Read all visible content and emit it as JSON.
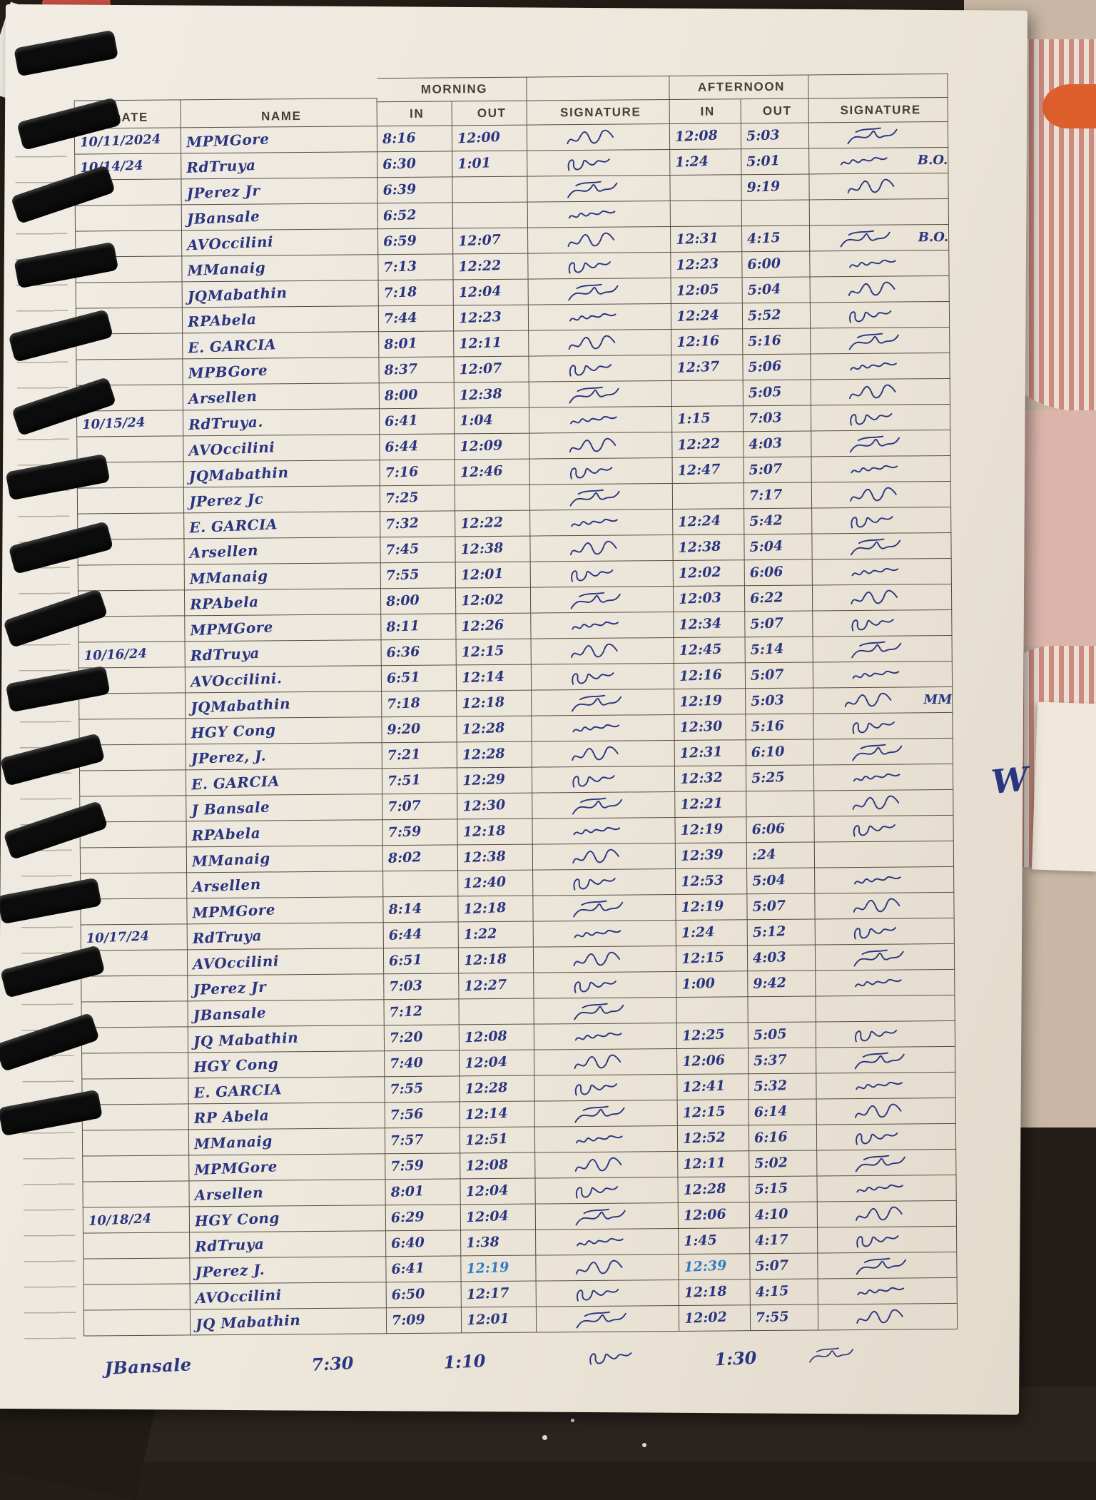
{
  "scene": {
    "description": "handwritten attendance logbook page in a spiral notebook",
    "margin_mark": "W"
  },
  "sheet": {
    "headers": {
      "date": "DATE",
      "name": "NAME",
      "morning": "MORNING",
      "afternoon": "AFTERNOON",
      "in": "IN",
      "out": "OUT",
      "signature": "SIGNATURE"
    },
    "ink": {
      "blue": "#2a3580",
      "light": "#2e7bc4"
    },
    "rows": [
      {
        "date": "10/11/2024",
        "name": "MPMGore",
        "m_in": "8:16",
        "m_out": "12:00",
        "m_sig": true,
        "a_in": "12:08",
        "a_out": "5:03",
        "a_sig": true
      },
      {
        "date": "10/14/24",
        "name": "RdTruya",
        "m_in": "6:30",
        "m_out": "1:01",
        "m_sig": true,
        "a_in": "1:24",
        "a_out": "5:01",
        "a_sig": true,
        "a_sig_note": "B.O."
      },
      {
        "name": "JPerez Jr",
        "m_in": "6:39",
        "m_sig": true,
        "a_out": "9:19",
        "a_sig": true
      },
      {
        "name": "JBansale",
        "m_in": "6:52",
        "m_sig": true
      },
      {
        "name": "AVOccilini",
        "m_in": "6:59",
        "m_out": "12:07",
        "m_sig": true,
        "a_in": "12:31",
        "a_out": "4:15",
        "a_sig": true,
        "a_sig_note": "B.O."
      },
      {
        "name": "MManaig",
        "m_in": "7:13",
        "m_out": "12:22",
        "m_sig": true,
        "a_in": "12:23",
        "a_out": "6:00",
        "a_sig": true
      },
      {
        "name": "JQMabathin",
        "m_in": "7:18",
        "m_out": "12:04",
        "m_sig": true,
        "a_in": "12:05",
        "a_out": "5:04",
        "a_sig": true
      },
      {
        "name": "RPAbela",
        "m_in": "7:44",
        "m_out": "12:23",
        "m_sig": true,
        "a_in": "12:24",
        "a_out": "5:52",
        "a_sig": true
      },
      {
        "name": "E. GARCIA",
        "m_in": "8:01",
        "m_out": "12:11",
        "m_sig": true,
        "a_in": "12:16",
        "a_out": "5:16",
        "a_sig": true
      },
      {
        "name": "MPBGore",
        "m_in": "8:37",
        "m_out": "12:07",
        "m_sig": true,
        "a_in": "12:37",
        "a_out": "5:06",
        "a_sig": true
      },
      {
        "name": "Arsellen",
        "m_in": "8:00",
        "m_out": "12:38",
        "m_sig": true,
        "a_out": "5:05",
        "a_sig": true
      },
      {
        "date": "10/15/24",
        "name": "RdTruya.",
        "m_in": "6:41",
        "m_out": "1:04",
        "m_sig": true,
        "a_in": "1:15",
        "a_out": "7:03",
        "a_sig": true
      },
      {
        "name": "AVOccilini",
        "m_in": "6:44",
        "m_out": "12:09",
        "m_sig": true,
        "a_in": "12:22",
        "a_out": "4:03",
        "a_sig": true
      },
      {
        "name": "JQMabathin",
        "m_in": "7:16",
        "m_out": "12:46",
        "m_sig": true,
        "a_in": "12:47",
        "a_out": "5:07",
        "a_sig": true
      },
      {
        "name": "JPerez Jc",
        "m_in": "7:25",
        "m_sig": true,
        "a_out": "7:17",
        "a_sig": true
      },
      {
        "name": "E. GARCIA",
        "m_in": "7:32",
        "m_out": "12:22",
        "m_sig": true,
        "a_in": "12:24",
        "a_out": "5:42",
        "a_sig": true
      },
      {
        "name": "Arsellen",
        "m_in": "7:45",
        "m_out": "12:38",
        "m_sig": true,
        "a_in": "12:38",
        "a_out": "5:04",
        "a_sig": true
      },
      {
        "name": "MManaig",
        "m_in": "7:55",
        "m_out": "12:01",
        "m_sig": true,
        "a_in": "12:02",
        "a_out": "6:06",
        "a_sig": true
      },
      {
        "name": "RPAbela",
        "m_in": "8:00",
        "m_out": "12:02",
        "m_sig": true,
        "a_in": "12:03",
        "a_out": "6:22",
        "a_sig": true
      },
      {
        "name": "MPMGore",
        "m_in": "8:11",
        "m_out": "12:26",
        "m_sig": true,
        "a_in": "12:34",
        "a_out": "5:07",
        "a_sig": true
      },
      {
        "date": "10/16/24",
        "name": "RdTruya",
        "m_in": "6:36",
        "m_out": "12:15",
        "m_sig": true,
        "a_in": "12:45",
        "a_out": "5:14",
        "a_sig": true
      },
      {
        "name": "AVOccilini.",
        "m_in": "6:51",
        "m_out": "12:14",
        "m_sig": true,
        "a_in": "12:16",
        "a_out": "5:07",
        "a_sig": true
      },
      {
        "name": "JQMabathin",
        "m_in": "7:18",
        "m_out": "12:18",
        "m_sig": true,
        "a_in": "12:19",
        "a_out": "5:03",
        "a_sig": true,
        "a_sig_note": "MM"
      },
      {
        "name": "HGY Cong",
        "m_in": "9:20",
        "m_out": "12:28",
        "m_sig": true,
        "a_in": "12:30",
        "a_out": "5:16",
        "a_sig": true
      },
      {
        "name": "JPerez, J.",
        "m_in": "7:21",
        "m_out": "12:28",
        "m_sig": true,
        "a_in": "12:31",
        "a_out": "6:10",
        "a_sig": true
      },
      {
        "name": "E. GARCIA",
        "m_in": "7:51",
        "m_out": "12:29",
        "m_sig": true,
        "a_in": "12:32",
        "a_out": "5:25",
        "a_sig": true
      },
      {
        "name": "J Bansale",
        "m_in": "7:07",
        "m_out": "12:30",
        "m_sig": true,
        "a_in": "12:21",
        "a_sig": true
      },
      {
        "name": "RPAbela",
        "m_in": "7:59",
        "m_out": "12:18",
        "m_sig": true,
        "a_in": "12:19",
        "a_out": "6:06",
        "a_sig": true
      },
      {
        "name": "MManaig",
        "m_in": "8:02",
        "m_out": "12:38",
        "m_sig": true,
        "a_in": "12:39",
        "a_out": ":24"
      },
      {
        "name": "Arsellen",
        "m_out": "12:40",
        "m_sig": true,
        "a_in": "12:53",
        "a_out": "5:04",
        "a_sig": true
      },
      {
        "name": "MPMGore",
        "m_in": "8:14",
        "m_out": "12:18",
        "m_sig": true,
        "a_in": "12:19",
        "a_out": "5:07",
        "a_sig": true
      },
      {
        "date": "10/17/24",
        "name": "RdTruya",
        "m_in": "6:44",
        "m_out": "1:22",
        "m_sig": true,
        "a_in": "1:24",
        "a_out": "5:12",
        "a_sig": true
      },
      {
        "name": "AVOccilini",
        "m_in": "6:51",
        "m_out": "12:18",
        "m_sig": true,
        "a_in": "12:15",
        "a_out": "4:03",
        "a_sig": true
      },
      {
        "name": "JPerez Jr",
        "m_in": "7:03",
        "m_out": "12:27",
        "m_sig": true,
        "a_in": "1:00",
        "a_out": "9:42",
        "a_sig": true
      },
      {
        "name": "JBansale",
        "m_in": "7:12",
        "m_sig": true
      },
      {
        "name": "JQ Mabathin",
        "m_in": "7:20",
        "m_out": "12:08",
        "m_sig": true,
        "a_in": "12:25",
        "a_out": "5:05",
        "a_sig": true
      },
      {
        "name": "HGY Cong",
        "m_in": "7:40",
        "m_out": "12:04",
        "m_sig": true,
        "a_in": "12:06",
        "a_out": "5:37",
        "a_sig": true
      },
      {
        "name": "E. GARCIA",
        "m_in": "7:55",
        "m_out": "12:28",
        "m_sig": true,
        "a_in": "12:41",
        "a_out": "5:32",
        "a_sig": true
      },
      {
        "name": "RP Abela",
        "m_in": "7:56",
        "m_out": "12:14",
        "m_sig": true,
        "a_in": "12:15",
        "a_out": "6:14",
        "a_sig": true
      },
      {
        "name": "MManaig",
        "m_in": "7:57",
        "m_out": "12:51",
        "m_sig": true,
        "a_in": "12:52",
        "a_out": "6:16",
        "a_sig": true
      },
      {
        "name": "MPMGore",
        "m_in": "7:59",
        "m_out": "12:08",
        "m_sig": true,
        "a_in": "12:11",
        "a_out": "5:02",
        "a_sig": true
      },
      {
        "name": "Arsellen",
        "m_in": "8:01",
        "m_out": "12:04",
        "m_sig": true,
        "a_in": "12:28",
        "a_out": "5:15",
        "a_sig": true
      },
      {
        "date": "10/18/24",
        "name": "HGY Cong",
        "m_in": "6:29",
        "m_out": "12:04",
        "m_sig": true,
        "a_in": "12:06",
        "a_out": "4:10",
        "a_sig": true
      },
      {
        "name": "RdTruya",
        "m_in": "6:40",
        "m_out": "1:38",
        "m_sig": true,
        "a_in": "1:45",
        "a_out": "4:17",
        "a_sig": true
      },
      {
        "name": "JPerez J.",
        "m_in": "6:41",
        "m_out": "12:19",
        "m_out_ink": "light",
        "m_sig": true,
        "a_in": "12:39",
        "a_in_ink": "light",
        "a_out": "5:07",
        "a_sig": true
      },
      {
        "name": "AVOccilini",
        "m_in": "6:50",
        "m_out": "12:17",
        "m_sig": true,
        "a_in": "12:18",
        "a_out": "4:15",
        "a_sig": true
      },
      {
        "name": "JQ Mabathin",
        "m_in": "7:09",
        "m_out": "12:01",
        "m_sig": true,
        "a_in": "12:02",
        "a_out": "7:55",
        "a_sig": true
      }
    ],
    "below_row": {
      "name": "JBansale",
      "m_in": "7:30",
      "m_out": "1:10",
      "m_sig": true,
      "a_in": "1:30",
      "a_sig": true
    }
  }
}
